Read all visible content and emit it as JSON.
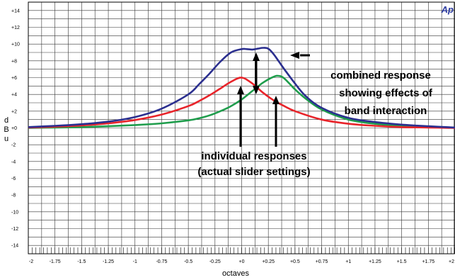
{
  "chart_data": {
    "type": "line",
    "xlabel": "octaves",
    "ylabel": "dBu",
    "xlim": [
      -2,
      2
    ],
    "ylim": [
      -15,
      15
    ],
    "x_ticks": [
      {
        "v": -2,
        "label": "-2"
      },
      {
        "v": -1.75,
        "label": "-1.75"
      },
      {
        "v": -1.5,
        "label": "-1.5"
      },
      {
        "v": -1.25,
        "label": "-1.25"
      },
      {
        "v": -1,
        "label": "-1"
      },
      {
        "v": -0.75,
        "label": "-0.75"
      },
      {
        "v": -0.5,
        "label": "-0.5"
      },
      {
        "v": -0.25,
        "label": "-0.25"
      },
      {
        "v": 0,
        "label": "+0"
      },
      {
        "v": 0.25,
        "label": "+0.25"
      },
      {
        "v": 0.5,
        "label": "+0.5"
      },
      {
        "v": 0.75,
        "label": "+0.75"
      },
      {
        "v": 1,
        "label": "+1"
      },
      {
        "v": 1.25,
        "label": "+1.25"
      },
      {
        "v": 1.5,
        "label": "+1.5"
      },
      {
        "v": 1.75,
        "label": "+1.75"
      },
      {
        "v": 2,
        "label": "+2"
      }
    ],
    "y_ticks": [
      {
        "v": 14,
        "label": "+14"
      },
      {
        "v": 12,
        "label": "+12"
      },
      {
        "v": 10,
        "label": "+10"
      },
      {
        "v": 8,
        "label": "+8"
      },
      {
        "v": 6,
        "label": "+6"
      },
      {
        "v": 4,
        "label": "+4"
      },
      {
        "v": 2,
        "label": "+2"
      },
      {
        "v": 0,
        "label": "+0"
      },
      {
        "v": -2,
        "label": "-2"
      },
      {
        "v": -4,
        "label": "-4"
      },
      {
        "v": -6,
        "label": "-6"
      },
      {
        "v": -8,
        "label": "-8"
      },
      {
        "v": -10,
        "label": "-10"
      },
      {
        "v": -12,
        "label": "-12"
      },
      {
        "v": -14,
        "label": "-14"
      }
    ],
    "grid": true,
    "series": [
      {
        "color": "#2b2f8f",
        "x": [
          -2,
          -1.75,
          -1.5,
          -1.25,
          -1,
          -0.75,
          -0.5,
          -0.4,
          -0.3,
          -0.2,
          -0.1,
          0,
          0.05,
          0.1,
          0.15,
          0.2,
          0.25,
          0.3,
          0.35,
          0.4,
          0.5,
          0.6,
          0.75,
          1,
          1.25,
          1.5,
          1.75,
          2
        ],
        "y": [
          0.1,
          0.25,
          0.45,
          0.75,
          1.3,
          2.3,
          4.0,
          5.2,
          6.5,
          7.9,
          9.0,
          9.4,
          9.4,
          9.35,
          9.45,
          9.55,
          9.45,
          8.8,
          7.9,
          7.0,
          5.3,
          3.8,
          2.4,
          1.2,
          0.7,
          0.4,
          0.2,
          0.05
        ]
      },
      {
        "color": "#e8242a",
        "x": [
          -2,
          -1.75,
          -1.5,
          -1.25,
          -1,
          -0.75,
          -0.5,
          -0.4,
          -0.3,
          -0.2,
          -0.1,
          0,
          0.1,
          0.2,
          0.3,
          0.4,
          0.5,
          0.75,
          1,
          1.25,
          1.5,
          1.75,
          2
        ],
        "y": [
          0.05,
          0.15,
          0.3,
          0.55,
          0.95,
          1.6,
          2.6,
          3.2,
          3.9,
          4.7,
          5.5,
          6.0,
          5.3,
          4.2,
          3.3,
          2.6,
          2.0,
          1.0,
          0.5,
          0.25,
          0.1,
          0.05,
          0
        ]
      },
      {
        "color": "#1f9d4c",
        "x": [
          -2,
          -1.75,
          -1.5,
          -1.25,
          -1,
          -0.75,
          -0.5,
          -0.4,
          -0.3,
          -0.2,
          -0.1,
          0,
          0.1,
          0.2,
          0.3,
          0.35,
          0.4,
          0.5,
          0.6,
          0.75,
          1,
          1.25,
          1.5,
          1.75,
          2
        ],
        "y": [
          0,
          0.05,
          0.1,
          0.2,
          0.35,
          0.55,
          0.9,
          1.15,
          1.5,
          2.0,
          2.6,
          3.4,
          4.4,
          5.4,
          6.1,
          6.2,
          5.9,
          4.6,
          3.5,
          2.2,
          1.0,
          0.5,
          0.25,
          0.1,
          0.05
        ]
      }
    ],
    "annotations": {
      "combined_line1": "combined response",
      "combined_line2": "showing effects of",
      "combined_line3": "band interaction",
      "individual_line1": "individual responses",
      "individual_line2": "(actual slider settings)"
    },
    "brand_text": "Ap",
    "brand_color": "#2b3aa0"
  }
}
